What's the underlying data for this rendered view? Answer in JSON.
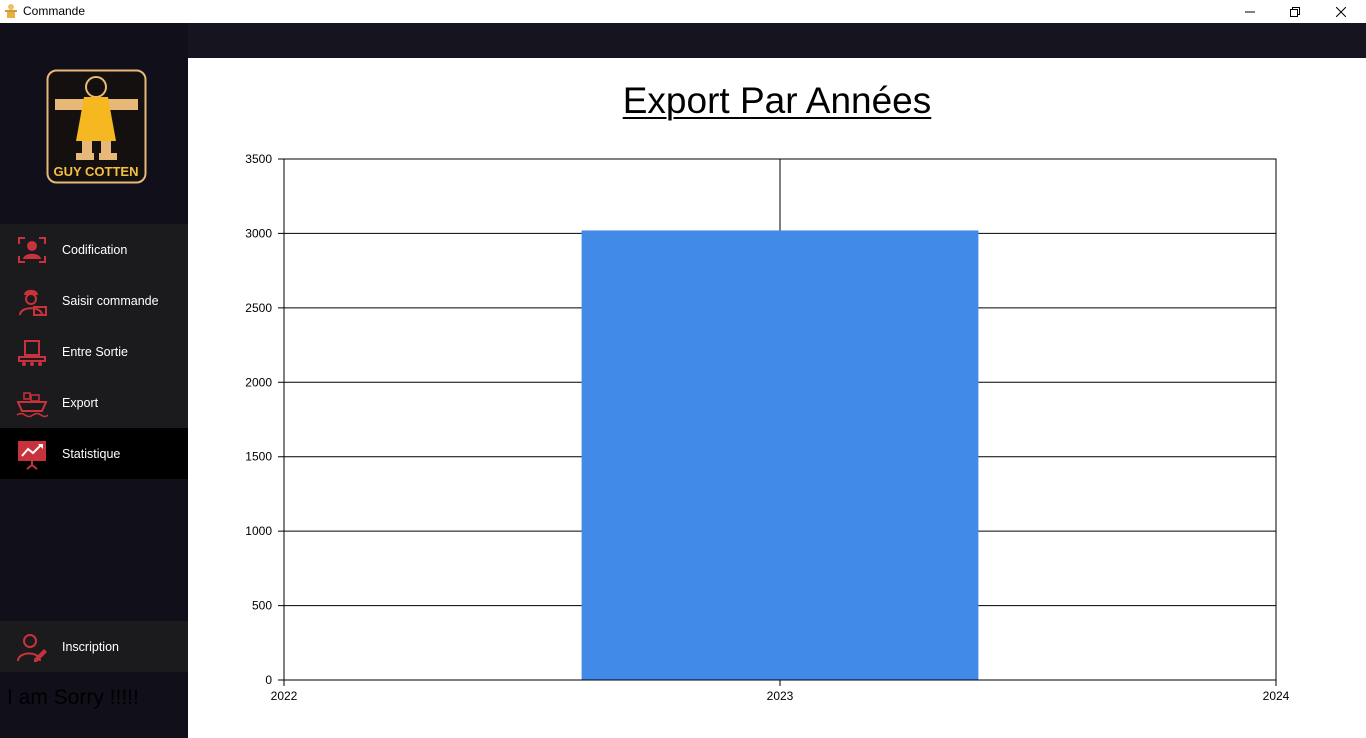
{
  "window": {
    "title": "Commande",
    "minimize_icon": "minimize-icon",
    "maximize_icon": "restore-icon",
    "close_icon": "close-icon"
  },
  "sidebar": {
    "logo_text": "GUY COTTEN",
    "items": [
      {
        "label": "Codification",
        "icon": "face-scan-icon",
        "active": false
      },
      {
        "label": "Saisir commande",
        "icon": "worker-icon",
        "active": false
      },
      {
        "label": "Entre Sortie",
        "icon": "conveyor-icon",
        "active": false
      },
      {
        "label": "Export",
        "icon": "ship-icon",
        "active": false
      },
      {
        "label": "Statistique",
        "icon": "chart-board-icon",
        "active": true
      }
    ],
    "bottom_item": {
      "label": "Inscription",
      "icon": "user-edit-icon"
    },
    "footer_text": "I am Sorry !!!!!"
  },
  "colors": {
    "sidebar_bg": "#110f1a",
    "item_bg": "#1b1b1d",
    "active_bg": "#000000",
    "icon_red": "#c8323c",
    "bar_blue": "#428ae8",
    "logo_gold": "#f5b820"
  },
  "chart_data": {
    "type": "bar",
    "title": "Export Par Années",
    "categories": [
      "2023"
    ],
    "values": [
      3020
    ],
    "x_ticks": [
      "2022",
      "2023",
      "2024"
    ],
    "y_ticks": [
      0,
      500,
      1000,
      1500,
      2000,
      2500,
      3000,
      3500
    ],
    "ylim": [
      0,
      3500
    ],
    "xlabel": "",
    "ylabel": "",
    "grid": true
  }
}
